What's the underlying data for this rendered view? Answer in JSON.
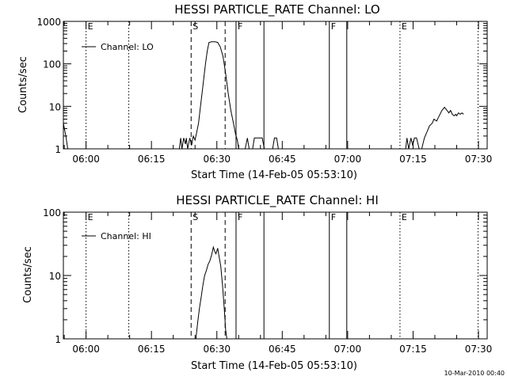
{
  "footer": {
    "timestamp": "10-Mar-2010 00:40"
  },
  "chart_data": [
    {
      "type": "line",
      "title": "HESSI PARTICLE_RATE Channel: LO",
      "xlabel": "Start Time (14-Feb-05 05:53:10)",
      "ylabel": "Counts/sec",
      "y_scale": "log",
      "ylim": [
        1,
        1000
      ],
      "y_ticks": [
        1,
        10,
        100,
        1000
      ],
      "y_tick_labels": [
        "1",
        "10",
        "100",
        "1000"
      ],
      "x_range_minutes_since_0600": [
        -5.2,
        92
      ],
      "x_ticks": [
        0,
        15,
        30,
        45,
        60,
        75,
        90
      ],
      "x_tick_labels": [
        "06:00",
        "06:15",
        "06:30",
        "06:45",
        "07:00",
        "07:15",
        "07:30"
      ],
      "legend": {
        "position": "top-left",
        "entries": [
          "Channel: LO"
        ]
      },
      "series": [
        {
          "name": "Channel: LO",
          "points": [
            [
              -5.2,
              4
            ],
            [
              -4.6,
              1.9
            ],
            [
              -4.2,
              1
            ],
            [
              21.4,
              1
            ],
            [
              21.7,
              1.8
            ],
            [
              22.0,
              1
            ],
            [
              22.4,
              1.8
            ],
            [
              22.8,
              1.3
            ],
            [
              23.0,
              1.8
            ],
            [
              23.3,
              1
            ],
            [
              23.8,
              1.8
            ],
            [
              24.2,
              1.2
            ],
            [
              24.6,
              2.0
            ],
            [
              25.0,
              1.6
            ],
            [
              25.4,
              2.5
            ],
            [
              25.8,
              4
            ],
            [
              26.2,
              9
            ],
            [
              26.6,
              20
            ],
            [
              27.0,
              45
            ],
            [
              27.4,
              100
            ],
            [
              27.8,
              200
            ],
            [
              28.2,
              320
            ],
            [
              28.8,
              330
            ],
            [
              29.6,
              330
            ],
            [
              30.2,
              320
            ],
            [
              30.8,
              250
            ],
            [
              31.4,
              150
            ],
            [
              32.0,
              60
            ],
            [
              32.6,
              20
            ],
            [
              33.2,
              8
            ],
            [
              33.8,
              4
            ],
            [
              34.3,
              2.2
            ],
            [
              34.7,
              1.6
            ],
            [
              35.0,
              1
            ],
            [
              36.5,
              1
            ],
            [
              37.0,
              1.8
            ],
            [
              37.4,
              1
            ],
            [
              38.2,
              1
            ],
            [
              38.6,
              1.8
            ],
            [
              40.4,
              1.8
            ],
            [
              40.9,
              1
            ],
            [
              42.8,
              1
            ],
            [
              43.2,
              1.8
            ],
            [
              43.7,
              1.8
            ],
            [
              44.1,
              1
            ],
            [
              73.3,
              1
            ],
            [
              73.6,
              1.8
            ],
            [
              74.0,
              1
            ],
            [
              74.5,
              1.8
            ],
            [
              74.9,
              1.2
            ],
            [
              75.3,
              1.8
            ],
            [
              75.8,
              1.8
            ],
            [
              76.4,
              1
            ],
            [
              77.0,
              1
            ],
            [
              77.6,
              1.8
            ],
            [
              78.2,
              2.5
            ],
            [
              78.8,
              3.5
            ],
            [
              79.4,
              4
            ],
            [
              79.8,
              5
            ],
            [
              80.4,
              4.5
            ],
            [
              81.0,
              6
            ],
            [
              81.6,
              8
            ],
            [
              82.2,
              9.5
            ],
            [
              82.8,
              8
            ],
            [
              83.2,
              7
            ],
            [
              83.6,
              8
            ],
            [
              84.0,
              6.5
            ],
            [
              84.4,
              6
            ],
            [
              84.8,
              6.5
            ],
            [
              85.0,
              6
            ],
            [
              85.4,
              7
            ],
            [
              85.8,
              6.5
            ],
            [
              86.2,
              7
            ],
            [
              86.6,
              6.5
            ]
          ]
        }
      ],
      "vlines": [
        {
          "x": 0,
          "label": "E",
          "style": "dotted"
        },
        {
          "x": 9.8,
          "label": "",
          "style": "dotted"
        },
        {
          "x": 24.1,
          "label": "S",
          "style": "dashed"
        },
        {
          "x": 31.9,
          "label": "",
          "style": "dashed"
        },
        {
          "x": 34.4,
          "label": "F",
          "style": "solid"
        },
        {
          "x": 40.8,
          "label": "",
          "style": "solid"
        },
        {
          "x": 55.8,
          "label": "F",
          "style": "solid"
        },
        {
          "x": 59.8,
          "label": "",
          "style": "solid"
        },
        {
          "x": 72.0,
          "label": "E",
          "style": "dotted"
        },
        {
          "x": 89.9,
          "label": "",
          "style": "dotted"
        }
      ]
    },
    {
      "type": "line",
      "title": "HESSI PARTICLE_RATE Channel: HI",
      "xlabel": "Start Time (14-Feb-05 05:53:10)",
      "ylabel": "Counts/sec",
      "y_scale": "log",
      "ylim": [
        1,
        100
      ],
      "y_ticks": [
        1,
        10,
        100
      ],
      "y_tick_labels": [
        "1",
        "10",
        "100"
      ],
      "x_range_minutes_since_0600": [
        -5.2,
        92
      ],
      "x_ticks": [
        0,
        15,
        30,
        45,
        60,
        75,
        90
      ],
      "x_tick_labels": [
        "06:00",
        "06:15",
        "06:30",
        "06:45",
        "07:00",
        "07:15",
        "07:30"
      ],
      "legend": {
        "position": "top-left",
        "entries": [
          "Channel: HI"
        ]
      },
      "series": [
        {
          "name": "Channel: HI",
          "points": [
            [
              25.2,
              1
            ],
            [
              25.6,
              1.8
            ],
            [
              26.0,
              3
            ],
            [
              26.4,
              4.5
            ],
            [
              26.8,
              7
            ],
            [
              27.2,
              10
            ],
            [
              27.6,
              12
            ],
            [
              28.0,
              15
            ],
            [
              28.4,
              17
            ],
            [
              28.8,
              21
            ],
            [
              29.2,
              28
            ],
            [
              29.5,
              24
            ],
            [
              29.8,
              22
            ],
            [
              30.2,
              27
            ],
            [
              30.5,
              20
            ],
            [
              30.9,
              14
            ],
            [
              31.3,
              7
            ],
            [
              31.7,
              3
            ],
            [
              32.0,
              1.4
            ],
            [
              32.3,
              1
            ]
          ]
        }
      ],
      "vlines": [
        {
          "x": 0,
          "label": "E",
          "style": "dotted"
        },
        {
          "x": 9.8,
          "label": "",
          "style": "dotted"
        },
        {
          "x": 24.1,
          "label": "S",
          "style": "dashed"
        },
        {
          "x": 31.9,
          "label": "",
          "style": "dashed"
        },
        {
          "x": 34.4,
          "label": "F",
          "style": "solid"
        },
        {
          "x": 40.8,
          "label": "",
          "style": "solid"
        },
        {
          "x": 55.8,
          "label": "F",
          "style": "solid"
        },
        {
          "x": 59.8,
          "label": "",
          "style": "solid"
        },
        {
          "x": 72.0,
          "label": "E",
          "style": "dotted"
        },
        {
          "x": 89.9,
          "label": "",
          "style": "dotted"
        }
      ]
    }
  ]
}
